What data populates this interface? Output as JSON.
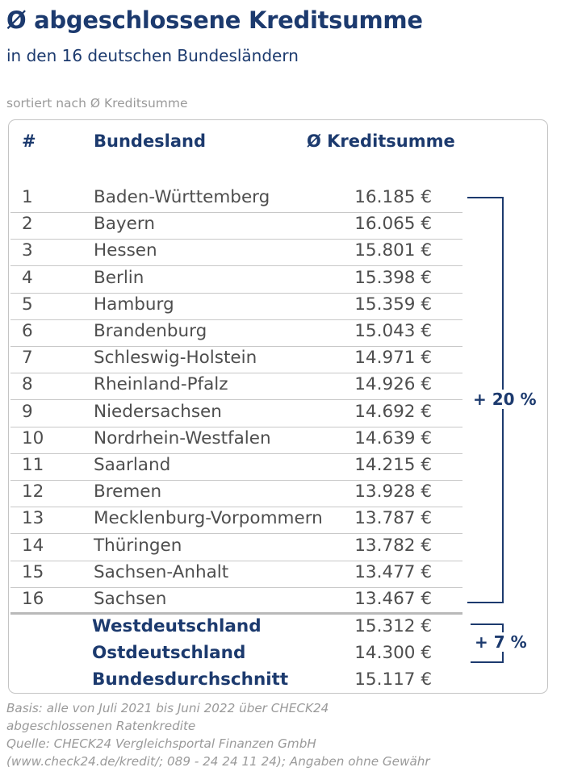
{
  "title": "Ø abgeschlossene Kreditsumme",
  "subtitle": "in den 16  deutschen Bundesländern",
  "sort_note": "sortiert nach Ø Kreditsumme",
  "table": {
    "headers": {
      "rank": "#",
      "state": "Bundesland",
      "amount": "Ø Kreditsumme"
    },
    "rows": [
      {
        "rank": "1",
        "state": "Baden-Württemberg",
        "amount": "16.185 €"
      },
      {
        "rank": "2",
        "state": "Bayern",
        "amount": "16.065 €"
      },
      {
        "rank": "3",
        "state": "Hessen",
        "amount": "15.801 €"
      },
      {
        "rank": "4",
        "state": "Berlin",
        "amount": "15.398 €"
      },
      {
        "rank": "5",
        "state": "Hamburg",
        "amount": "15.359 €"
      },
      {
        "rank": "6",
        "state": "Brandenburg",
        "amount": "15.043 €"
      },
      {
        "rank": "7",
        "state": "Schleswig-Holstein",
        "amount": "14.971 €"
      },
      {
        "rank": "8",
        "state": "Rheinland-Pfalz",
        "amount": "14.926 €"
      },
      {
        "rank": "9",
        "state": "Niedersachsen",
        "amount": "14.692 €"
      },
      {
        "rank": "10",
        "state": "Nordrhein-Westfalen",
        "amount": "14.639 €"
      },
      {
        "rank": "11",
        "state": "Saarland",
        "amount": "14.215 €"
      },
      {
        "rank": "12",
        "state": "Bremen",
        "amount": "13.928 €"
      },
      {
        "rank": "13",
        "state": "Mecklenburg-Vorpommern",
        "amount": "13.787 €"
      },
      {
        "rank": "14",
        "state": "Thüringen",
        "amount": "13.782 €"
      },
      {
        "rank": "15",
        "state": "Sachsen-Anhalt",
        "amount": "13.477 €"
      },
      {
        "rank": "16",
        "state": "Sachsen",
        "amount": "13.467 €"
      }
    ],
    "summary": [
      {
        "label": "Westdeutschland",
        "amount": "15.312 €"
      },
      {
        "label": "Ostdeutschland",
        "amount": "14.300 €"
      },
      {
        "label": "Bundesdurchschnitt",
        "amount": "15.117 €"
      }
    ]
  },
  "brackets": {
    "states_diff": "+ 20 %",
    "east_west_diff": "+ 7 %"
  },
  "footer": {
    "basis_line1": "Basis: alle von Juli 2021 bis Juni 2022 über CHECK24",
    "basis_line2": "abgeschlossenen Ratenkredite",
    "source_line1": "Quelle: CHECK24 Vergleichsportal Finanzen GmbH",
    "source_line2": "(www.check24.de/kredit/; 089 - 24 24 11 24); Angaben ohne Gewähr"
  },
  "colors": {
    "brand_navy": "#1c3a6e",
    "text_gray": "#4e4e4e",
    "muted_gray": "#9a9a9a"
  }
}
